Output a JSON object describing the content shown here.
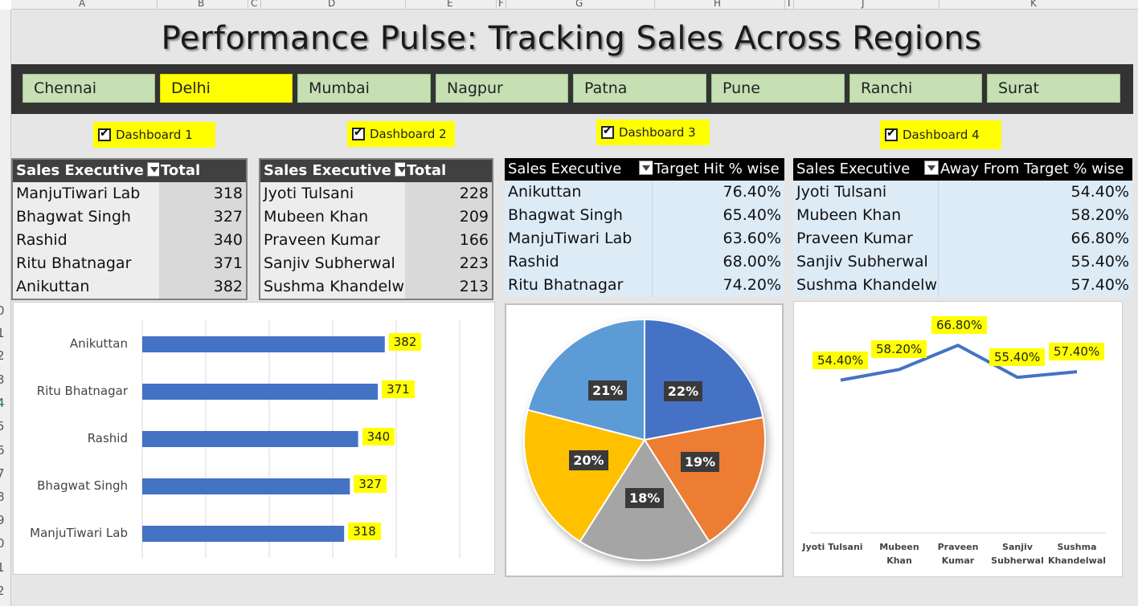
{
  "sheet": {
    "columns": [
      "A",
      "B",
      "C",
      "D",
      "E",
      "F",
      "G",
      "H",
      "I",
      "J",
      "K"
    ],
    "rows": [
      "0",
      "1",
      "2",
      "3",
      "4",
      "5",
      "6",
      "7",
      "8",
      "9",
      "0",
      "1",
      "2"
    ]
  },
  "title": "Performance Pulse: Tracking Sales Across Regions",
  "slicer": {
    "items": [
      {
        "label": "Chennai",
        "active": false
      },
      {
        "label": "Delhi",
        "active": true
      },
      {
        "label": "Mumbai",
        "active": false
      },
      {
        "label": "Nagpur",
        "active": false
      },
      {
        "label": "Patna",
        "active": false
      },
      {
        "label": "Pune",
        "active": false
      },
      {
        "label": "Ranchi",
        "active": false
      },
      {
        "label": "Surat",
        "active": false
      }
    ]
  },
  "checkboxes": [
    {
      "label": "Dashboard 1"
    },
    {
      "label": "Dashboard 2"
    },
    {
      "label": "Dashboard 3"
    },
    {
      "label": "Dashboard 4"
    }
  ],
  "tables": [
    {
      "header": [
        "Sales Executive",
        "Total Sales"
      ],
      "rows": [
        [
          "ManjuTiwari Lab",
          "318"
        ],
        [
          "Bhagwat Singh",
          "327"
        ],
        [
          "Rashid",
          "340"
        ],
        [
          "Ritu Bhatnagar",
          "371"
        ],
        [
          "Anikuttan",
          "382"
        ]
      ]
    },
    {
      "header": [
        "Sales Executive",
        "Total Sales"
      ],
      "rows": [
        [
          "Jyoti Tulsani",
          "228"
        ],
        [
          "Mubeen Khan",
          "209"
        ],
        [
          "Praveen Kumar",
          "166"
        ],
        [
          "Sanjiv Subherwal",
          "223"
        ],
        [
          "Sushma Khandelwa",
          "213"
        ]
      ]
    },
    {
      "header": [
        "Sales Executive",
        "Target Hit % wise"
      ],
      "rows": [
        [
          "Anikuttan",
          "76.40%"
        ],
        [
          "Bhagwat Singh",
          "65.40%"
        ],
        [
          "ManjuTiwari Lab",
          "63.60%"
        ],
        [
          "Rashid",
          "68.00%"
        ],
        [
          "Ritu Bhatnagar",
          "74.20%"
        ]
      ]
    },
    {
      "header": [
        "Sales Executive",
        "Away From Target % wise"
      ],
      "rows": [
        [
          "Jyoti Tulsani",
          "54.40%"
        ],
        [
          "Mubeen Khan",
          "58.20%"
        ],
        [
          "Praveen Kumar",
          "66.80%"
        ],
        [
          "Sanjiv Subherwal",
          "55.40%"
        ],
        [
          "Sushma Khandelwa",
          "57.40%"
        ]
      ]
    }
  ],
  "colors": {
    "bar": "#4472c4",
    "line": "#4472c4",
    "label_bg": "#ffff00",
    "slicer_bg": "#333333",
    "slicer_btn": "#c6e0b4",
    "pie": [
      "#4472c4",
      "#ed7d31",
      "#a5a5a5",
      "#ffc000",
      "#5b9bd5"
    ]
  },
  "chart_data": [
    {
      "type": "bar",
      "orientation": "horizontal",
      "categories": [
        "Anikuttan",
        "Ritu Bhatnagar",
        "Rashid",
        "Bhagwat Singh",
        "ManjuTiwari Lab"
      ],
      "values": [
        382,
        371,
        340,
        327,
        318
      ],
      "labels": [
        "382",
        "371",
        "340",
        "327",
        "318"
      ],
      "xlim": [
        0,
        500
      ],
      "grid": true,
      "legend": "none"
    },
    {
      "type": "pie",
      "slices": [
        {
          "value": 22,
          "label": "22%"
        },
        {
          "value": 19,
          "label": "19%"
        },
        {
          "value": 18,
          "label": "18%"
        },
        {
          "value": 20,
          "label": "20%"
        },
        {
          "value": 21,
          "label": "21%"
        }
      ],
      "legend": "none"
    },
    {
      "type": "line",
      "categories": [
        {
          "line1": "Jyoti Tulsani",
          "line2": ""
        },
        {
          "line1": "Mubeen",
          "line2": "Khan"
        },
        {
          "line1": "Praveen",
          "line2": "Kumar"
        },
        {
          "line1": "Sanjiv",
          "line2": "Subherwal"
        },
        {
          "line1": "Sushma",
          "line2": "Khandelwal"
        }
      ],
      "values": [
        54.4,
        58.2,
        66.8,
        55.4,
        57.4
      ],
      "labels": [
        "54.40%",
        "58.20%",
        "66.80%",
        "55.40%",
        "57.40%"
      ],
      "ylim": [
        0,
        80
      ],
      "legend": "none"
    }
  ]
}
